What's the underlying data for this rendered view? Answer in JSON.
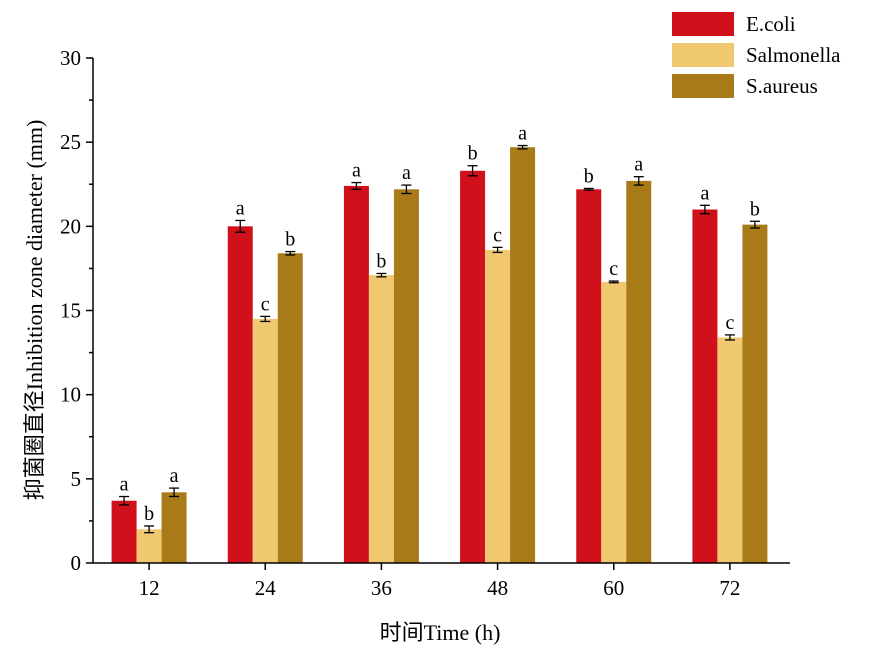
{
  "chart_data": {
    "type": "bar",
    "xlabel": "时间Time (h)",
    "ylabel": "抑菌圈直径Inhibition zone diameter (mm)",
    "ylim": [
      0,
      30
    ],
    "yticks": [
      0,
      5,
      10,
      15,
      20,
      25,
      30
    ],
    "categories": [
      "12",
      "24",
      "36",
      "48",
      "60",
      "72"
    ],
    "legend_position": "top-right",
    "grid": false,
    "series": [
      {
        "name": "E.coli",
        "color": "#d0101a",
        "values": [
          3.7,
          20.0,
          22.4,
          23.3,
          22.2,
          21.0
        ],
        "errors": [
          0.25,
          0.35,
          0.2,
          0.3,
          0.05,
          0.25
        ],
        "labels": [
          "a",
          "a",
          "a",
          "b",
          "b",
          "a"
        ]
      },
      {
        "name": "Salmonella",
        "color": "#f0c870",
        "values": [
          2.0,
          14.5,
          17.1,
          18.6,
          16.7,
          13.4
        ],
        "errors": [
          0.2,
          0.15,
          0.1,
          0.15,
          0.05,
          0.15
        ],
        "labels": [
          "b",
          "c",
          "b",
          "c",
          "c",
          "c"
        ]
      },
      {
        "name": "S.aureus",
        "color": "#a87a18",
        "values": [
          4.2,
          18.4,
          22.2,
          24.7,
          22.7,
          20.1
        ],
        "errors": [
          0.25,
          0.1,
          0.25,
          0.1,
          0.25,
          0.2
        ],
        "labels": [
          "a",
          "b",
          "a",
          "a",
          "a",
          "b"
        ]
      }
    ]
  }
}
